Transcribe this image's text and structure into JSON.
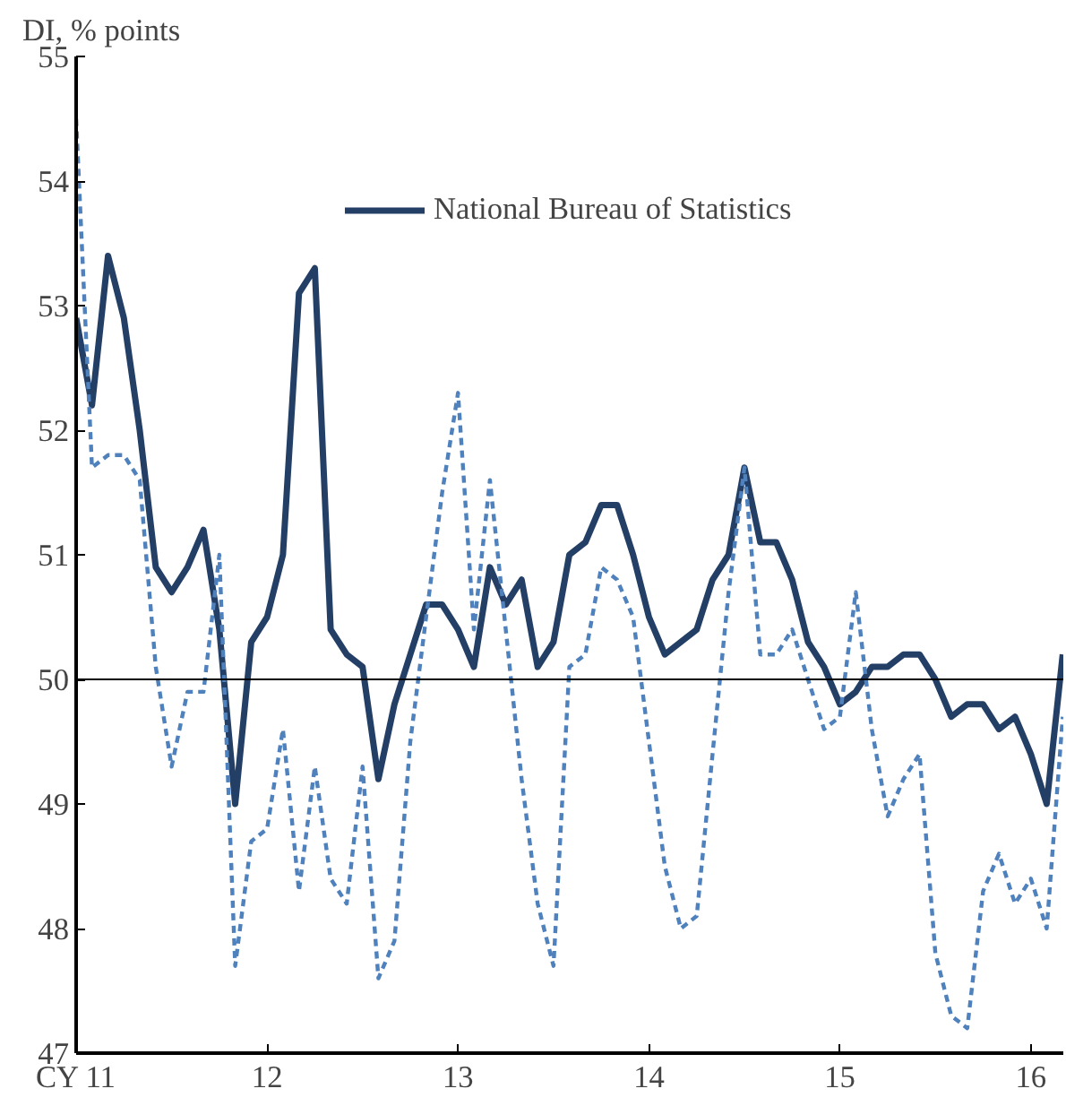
{
  "chart_data": {
    "type": "line",
    "ylabel": "DI, % points",
    "x": [
      11.0,
      11.083,
      11.167,
      11.25,
      11.333,
      11.417,
      11.5,
      11.583,
      11.667,
      11.75,
      11.833,
      11.917,
      12.0,
      12.083,
      12.167,
      12.25,
      12.333,
      12.417,
      12.5,
      12.583,
      12.667,
      12.75,
      12.833,
      12.917,
      13.0,
      13.083,
      13.167,
      13.25,
      13.333,
      13.417,
      13.5,
      13.583,
      13.667,
      13.75,
      13.833,
      13.917,
      14.0,
      14.083,
      14.167,
      14.25,
      14.333,
      14.417,
      14.5,
      14.583,
      14.667,
      14.75,
      14.833,
      14.917,
      15.0,
      15.083,
      15.167,
      15.25,
      15.333,
      15.417,
      15.5,
      15.583,
      15.667,
      15.75,
      15.833,
      15.917,
      16.0,
      16.083,
      16.167
    ],
    "series": [
      {
        "name": "National Bureau of Statistics",
        "color": "#243f66",
        "line_style": "solid",
        "values": [
          52.9,
          52.2,
          53.4,
          52.9,
          52.0,
          50.9,
          50.7,
          50.9,
          51.2,
          50.4,
          49.0,
          50.3,
          50.5,
          51.0,
          53.1,
          53.3,
          50.4,
          50.2,
          50.1,
          49.2,
          49.8,
          50.2,
          50.6,
          50.6,
          50.4,
          50.1,
          50.9,
          50.6,
          50.8,
          50.1,
          50.3,
          51.0,
          51.1,
          51.4,
          51.4,
          51.0,
          50.5,
          50.2,
          50.3,
          50.4,
          50.8,
          51.0,
          51.7,
          51.1,
          51.1,
          50.8,
          50.3,
          50.1,
          49.8,
          49.9,
          50.1,
          50.1,
          50.2,
          50.2,
          50.0,
          49.7,
          49.8,
          49.8,
          49.6,
          49.7,
          49.4,
          49.0,
          50.2
        ]
      },
      {
        "color": "#4f81bd",
        "line_style": "dashed",
        "values": [
          54.5,
          51.7,
          51.8,
          51.8,
          51.6,
          50.1,
          49.3,
          49.9,
          49.9,
          51.0,
          47.7,
          48.7,
          48.8,
          49.6,
          48.3,
          49.3,
          48.4,
          48.2,
          49.3,
          47.6,
          47.9,
          49.5,
          50.5,
          51.5,
          52.3,
          50.4,
          51.6,
          50.4,
          49.2,
          48.2,
          47.7,
          50.1,
          50.2,
          50.9,
          50.8,
          50.5,
          49.5,
          48.5,
          48.0,
          48.1,
          49.4,
          50.7,
          51.7,
          50.2,
          50.2,
          50.4,
          50.0,
          49.6,
          49.7,
          50.7,
          49.6,
          48.9,
          49.2,
          49.4,
          47.8,
          47.3,
          47.2,
          48.3,
          48.6,
          48.2,
          48.4,
          48.0,
          49.7
        ]
      }
    ],
    "xlim": [
      11,
      16.17
    ],
    "xticks": [
      {
        "value": 11,
        "label": "CY 11"
      },
      12,
      13,
      14,
      15,
      16
    ],
    "ylim": [
      47,
      55
    ],
    "yticks": [
      47,
      48,
      49,
      50,
      51,
      52,
      53,
      54,
      55
    ],
    "ref_lines": [
      {
        "axis": "y",
        "value": 50,
        "color": "#000000"
      }
    ],
    "grid": false,
    "legend": "top",
    "marker": "none"
  }
}
